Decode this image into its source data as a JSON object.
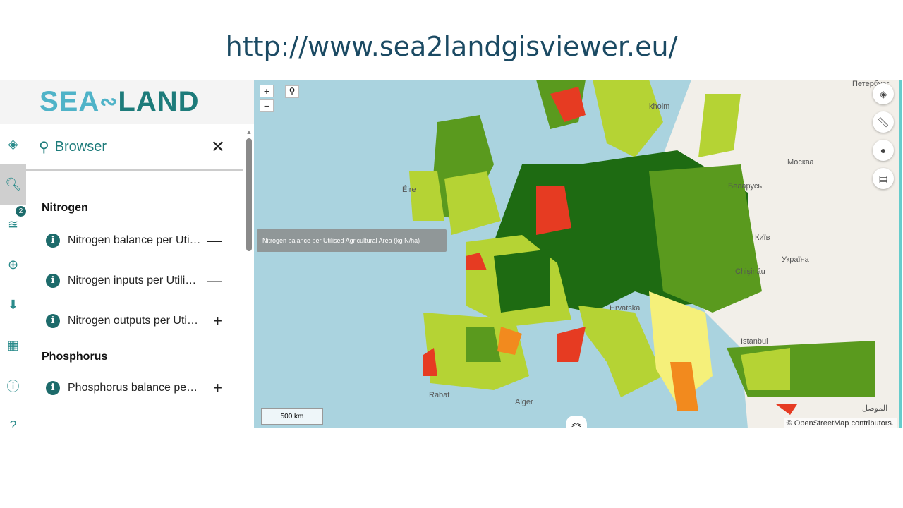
{
  "slide": {
    "url": "http://www.sea2landgisviewer.eu/"
  },
  "logo": {
    "part1": "SEA2",
    "part2": "LAND"
  },
  "rail": {
    "badge": "2"
  },
  "panel": {
    "title": "Browser",
    "groups": [
      {
        "name": "Nitrogen",
        "items": [
          {
            "label": "Nitrogen balance per Uti…",
            "action": "—"
          },
          {
            "label": "Nitrogen inputs per Utili…",
            "action": "—"
          },
          {
            "label": "Nitrogen outputs per Uti…",
            "action": "+"
          }
        ]
      },
      {
        "name": "Phosphorus",
        "items": [
          {
            "label": "Phosphorus balance pe…",
            "action": "+"
          }
        ]
      }
    ]
  },
  "tooltip": "Nitrogen balance per Utilised Agricultural Area (kg N/ha)",
  "map": {
    "zoom_in": "+",
    "zoom_out": "−",
    "scale": "500 km",
    "attribution": "© OpenStreetMap contributors.",
    "labels": [
      "Петербург",
      "kholm",
      "Москва",
      "Беларусь",
      "Київ",
      "Україна",
      "Chişinău",
      "Éire",
      "Hrvatska",
      "Istanbul",
      "Alger",
      "Rabat",
      "الموصل"
    ],
    "colors": {
      "sea": "#aad3df",
      "land": "#f2efe9",
      "dark_green": "#1e6b12",
      "green": "#5a9a1e",
      "light_green": "#b5d334",
      "yellow": "#f5f07a",
      "orange": "#f28a1e",
      "red": "#e63b22"
    }
  }
}
